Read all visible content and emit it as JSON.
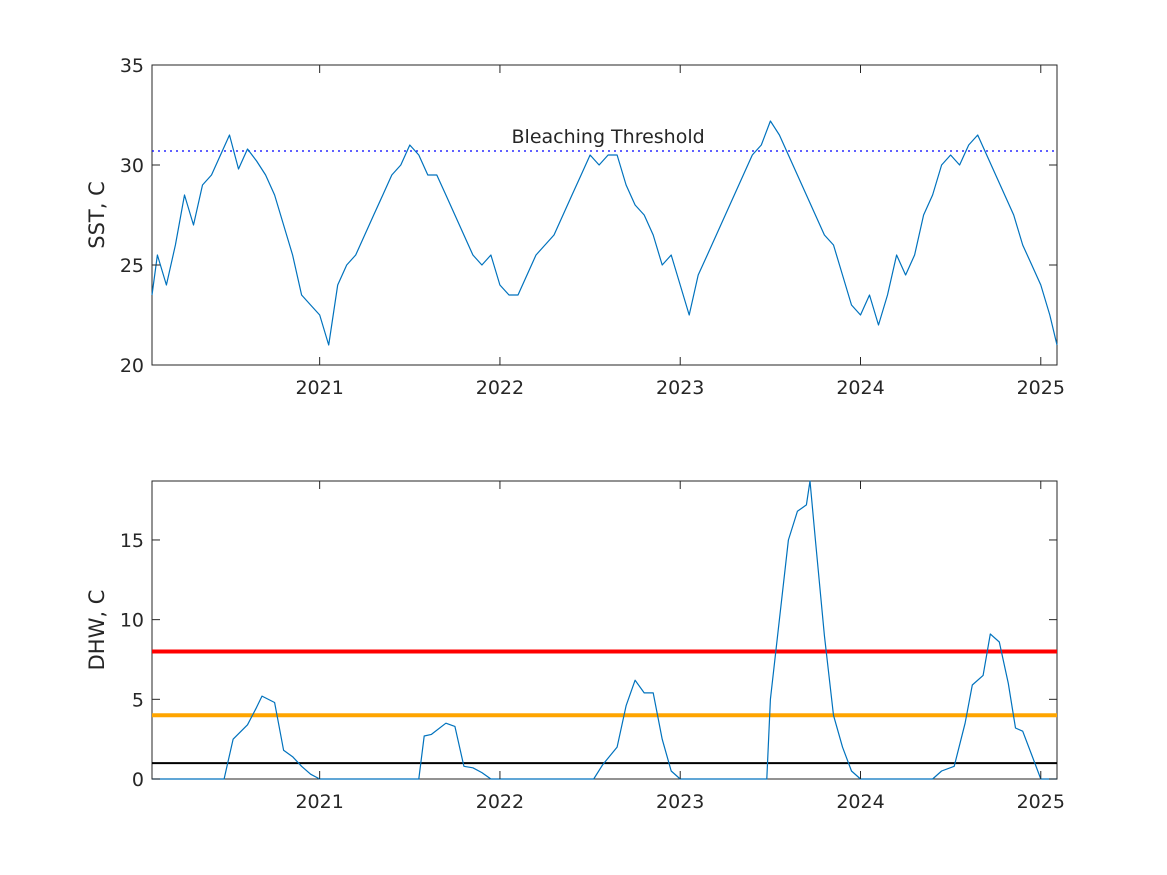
{
  "chart_data": [
    {
      "type": "line",
      "ylabel": "SST, C",
      "xlim": [
        2020.07,
        2025.09
      ],
      "ylim": [
        20,
        35
      ],
      "yticks": [
        20,
        25,
        30,
        35
      ],
      "xticks": [
        2021,
        2022,
        2023,
        2024,
        2025
      ],
      "xticklabels": [
        "2021",
        "2022",
        "2023",
        "2024",
        "2025"
      ],
      "grid": false,
      "annotation": "Bleaching Threshold",
      "threshold": 30.7,
      "colors": {
        "series": "#0072BD",
        "threshold": "#0000ff"
      },
      "series": [
        {
          "x": [
            2020.07,
            2020.1,
            2020.15,
            2020.2,
            2020.25,
            2020.3,
            2020.35,
            2020.4,
            2020.45,
            2020.5,
            2020.55,
            2020.6,
            2020.65,
            2020.7,
            2020.75,
            2020.8,
            2020.85,
            2020.9,
            2020.95,
            2021.0,
            2021.05,
            2021.1,
            2021.15,
            2021.2,
            2021.25,
            2021.3,
            2021.35,
            2021.4,
            2021.45,
            2021.5,
            2021.55,
            2021.6,
            2021.65,
            2021.7,
            2021.75,
            2021.8,
            2021.85,
            2021.9,
            2021.95,
            2022.0,
            2022.05,
            2022.1,
            2022.15,
            2022.2,
            2022.25,
            2022.3,
            2022.35,
            2022.4,
            2022.45,
            2022.5,
            2022.55,
            2022.6,
            2022.65,
            2022.7,
            2022.75,
            2022.8,
            2022.85,
            2022.9,
            2022.95,
            2023.0,
            2023.05,
            2023.1,
            2023.15,
            2023.2,
            2023.25,
            2023.3,
            2023.35,
            2023.4,
            2023.45,
            2023.5,
            2023.55,
            2023.6,
            2023.65,
            2023.7,
            2023.75,
            2023.8,
            2023.85,
            2023.9,
            2023.95,
            2024.0,
            2024.05,
            2024.1,
            2024.15,
            2024.2,
            2024.25,
            2024.3,
            2024.35,
            2024.4,
            2024.45,
            2024.5,
            2024.55,
            2024.6,
            2024.65,
            2024.7,
            2024.75,
            2024.8,
            2024.85,
            2024.9,
            2024.95,
            2025.0,
            2025.05,
            2025.09
          ],
          "y": [
            23.5,
            25.5,
            24.0,
            26.0,
            28.5,
            27.0,
            29.0,
            29.5,
            30.5,
            31.5,
            29.8,
            30.8,
            30.2,
            29.5,
            28.5,
            27.0,
            25.5,
            23.5,
            23.0,
            22.5,
            21.0,
            24.0,
            25.0,
            25.5,
            26.5,
            27.5,
            28.5,
            29.5,
            30.0,
            31.0,
            30.5,
            29.5,
            29.5,
            28.5,
            27.5,
            26.5,
            25.5,
            25.0,
            25.5,
            24.0,
            23.5,
            23.5,
            24.5,
            25.5,
            26.0,
            26.5,
            27.5,
            28.5,
            29.5,
            30.5,
            30.0,
            30.5,
            30.5,
            29.0,
            28.0,
            27.5,
            26.5,
            25.0,
            25.5,
            24.0,
            22.5,
            24.5,
            25.5,
            26.5,
            27.5,
            28.5,
            29.5,
            30.5,
            31.0,
            32.2,
            31.5,
            30.5,
            29.5,
            28.5,
            27.5,
            26.5,
            26.0,
            24.5,
            23.0,
            22.5,
            23.5,
            22.0,
            23.5,
            25.5,
            24.5,
            25.5,
            27.5,
            28.5,
            30.0,
            30.5,
            30.0,
            31.0,
            31.5,
            30.5,
            29.5,
            28.5,
            27.5,
            26.0,
            25.0,
            24.0,
            22.5,
            21.0
          ]
        }
      ]
    },
    {
      "type": "line",
      "ylabel": "DHW, C",
      "xlim": [
        2020.07,
        2025.09
      ],
      "ylim": [
        0,
        18.7
      ],
      "yticks": [
        0,
        5,
        10,
        15
      ],
      "xticks": [
        2021,
        2022,
        2023,
        2024,
        2025
      ],
      "xticklabels": [
        "2021",
        "2022",
        "2023",
        "2024",
        "2025"
      ],
      "grid": false,
      "reference_lines": [
        {
          "value": 8,
          "color": "#ff0000"
        },
        {
          "value": 4,
          "color": "#ffa500"
        },
        {
          "value": 1,
          "color": "#000000"
        }
      ],
      "colors": {
        "series": "#0072BD"
      },
      "series": [
        {
          "x": [
            2020.07,
            2020.47,
            2020.52,
            2020.6,
            2020.65,
            2020.68,
            2020.75,
            2020.8,
            2020.85,
            2020.9,
            2020.95,
            2021.0,
            2021.55,
            2021.58,
            2021.62,
            2021.7,
            2021.75,
            2021.8,
            2021.85,
            2021.9,
            2021.95,
            2022.0,
            2022.52,
            2022.57,
            2022.65,
            2022.7,
            2022.75,
            2022.8,
            2022.85,
            2022.9,
            2022.95,
            2023.0,
            2023.48,
            2023.5,
            2023.55,
            2023.6,
            2023.65,
            2023.7,
            2023.72,
            2023.75,
            2023.8,
            2023.85,
            2023.9,
            2023.95,
            2024.0,
            2024.4,
            2024.45,
            2024.52,
            2024.58,
            2024.62,
            2024.68,
            2024.72,
            2024.77,
            2024.82,
            2024.86,
            2024.9,
            2024.95,
            2025.0,
            2025.09
          ],
          "y": [
            0,
            0,
            2.5,
            3.4,
            4.5,
            5.2,
            4.8,
            1.8,
            1.4,
            0.8,
            0.3,
            0,
            0,
            2.7,
            2.8,
            3.5,
            3.3,
            0.8,
            0.7,
            0.4,
            0,
            0,
            0,
            0.9,
            2.0,
            4.6,
            6.2,
            5.4,
            5.4,
            2.5,
            0.5,
            0,
            0,
            5.0,
            10.0,
            15.0,
            16.8,
            17.2,
            18.7,
            15.0,
            9.0,
            4.0,
            2.0,
            0.5,
            0,
            0,
            0.5,
            0.8,
            3.5,
            5.9,
            6.5,
            9.1,
            8.6,
            6.0,
            3.2,
            3.0,
            1.5,
            0,
            0
          ]
        }
      ]
    }
  ]
}
